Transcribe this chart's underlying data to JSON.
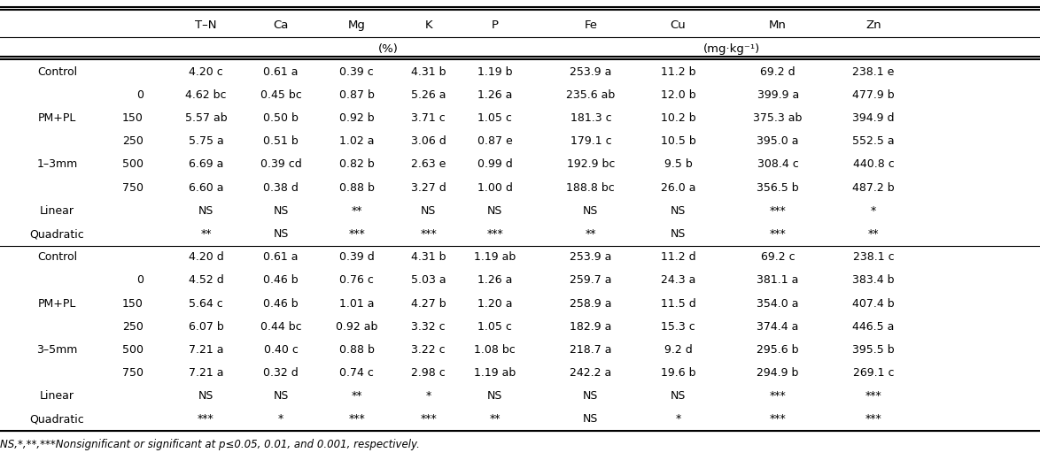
{
  "rows_section1": [
    [
      "Control",
      "",
      "4.20 c",
      "0.61 a",
      "0.39 c",
      "4.31 b",
      "1.19 b",
      "253.9 a",
      "11.2 b",
      "69.2 d",
      "238.1 e"
    ],
    [
      "",
      "0",
      "4.62 bc",
      "0.45 bc",
      "0.87 b",
      "5.26 a",
      "1.26 a",
      "235.6 ab",
      "12.0 b",
      "399.9 a",
      "477.9 b"
    ],
    [
      "PM+PL",
      "150",
      "5.57 ab",
      "0.50 b",
      "0.92 b",
      "3.71 c",
      "1.05 c",
      "181.3 c",
      "10.2 b",
      "375.3 ab",
      "394.9 d"
    ],
    [
      "",
      "250",
      "5.75 a",
      "0.51 b",
      "1.02 a",
      "3.06 d",
      "0.87 e",
      "179.1 c",
      "10.5 b",
      "395.0 a",
      "552.5 a"
    ],
    [
      "1–3mm",
      "500",
      "6.69 a",
      "0.39 cd",
      "0.82 b",
      "2.63 e",
      "0.99 d",
      "192.9 bc",
      "9.5 b",
      "308.4 c",
      "440.8 c"
    ],
    [
      "",
      "750",
      "6.60 a",
      "0.38 d",
      "0.88 b",
      "3.27 d",
      "1.00 d",
      "188.8 bc",
      "26.0 a",
      "356.5 b",
      "487.2 b"
    ],
    [
      "Linear",
      "",
      "NS",
      "NS",
      "**",
      "NS",
      "NS",
      "NS",
      "NS",
      "***",
      "*"
    ],
    [
      "Quadratic",
      "",
      "**",
      "NS",
      "***",
      "***",
      "***",
      "**",
      "NS",
      "***",
      "**"
    ]
  ],
  "rows_section2": [
    [
      "Control",
      "",
      "4.20 d",
      "0.61 a",
      "0.39 d",
      "4.31 b",
      "1.19 ab",
      "253.9 a",
      "11.2 d",
      "69.2 c",
      "238.1 c"
    ],
    [
      "",
      "0",
      "4.52 d",
      "0.46 b",
      "0.76 c",
      "5.03 a",
      "1.26 a",
      "259.7 a",
      "24.3 a",
      "381.1 a",
      "383.4 b"
    ],
    [
      "PM+PL",
      "150",
      "5.64 c",
      "0.46 b",
      "1.01 a",
      "4.27 b",
      "1.20 a",
      "258.9 a",
      "11.5 d",
      "354.0 a",
      "407.4 b"
    ],
    [
      "",
      "250",
      "6.07 b",
      "0.44 bc",
      "0.92 ab",
      "3.32 c",
      "1.05 c",
      "182.9 a",
      "15.3 c",
      "374.4 a",
      "446.5 a"
    ],
    [
      "3–5mm",
      "500",
      "7.21 a",
      "0.40 c",
      "0.88 b",
      "3.22 c",
      "1.08 bc",
      "218.7 a",
      "9.2 d",
      "295.6 b",
      "395.5 b"
    ],
    [
      "",
      "750",
      "7.21 a",
      "0.32 d",
      "0.74 c",
      "2.98 c",
      "1.19 ab",
      "242.2 a",
      "19.6 b",
      "294.9 b",
      "269.1 c"
    ],
    [
      "Linear",
      "",
      "NS",
      "NS",
      "**",
      "*",
      "NS",
      "NS",
      "NS",
      "***",
      "***"
    ],
    [
      "Quadratic",
      "",
      "***",
      "*",
      "***",
      "***",
      "**",
      "NS",
      "*",
      "***",
      "***"
    ]
  ],
  "footnote": "NS,*,**,***Nonsignificant or significant at p≤0.05, 0.01, and 0.001, respectively.",
  "col_header": [
    "T–N",
    "Ca",
    "Mg",
    "K",
    "P",
    "Fe",
    "Cu",
    "Mn",
    "Zn"
  ],
  "unit_pct": "(%)",
  "unit_mg": "(mg·kg⁻¹)",
  "fs_header": 9.5,
  "fs_data": 9.0,
  "fs_footnote": 8.5,
  "bg_color": "white"
}
